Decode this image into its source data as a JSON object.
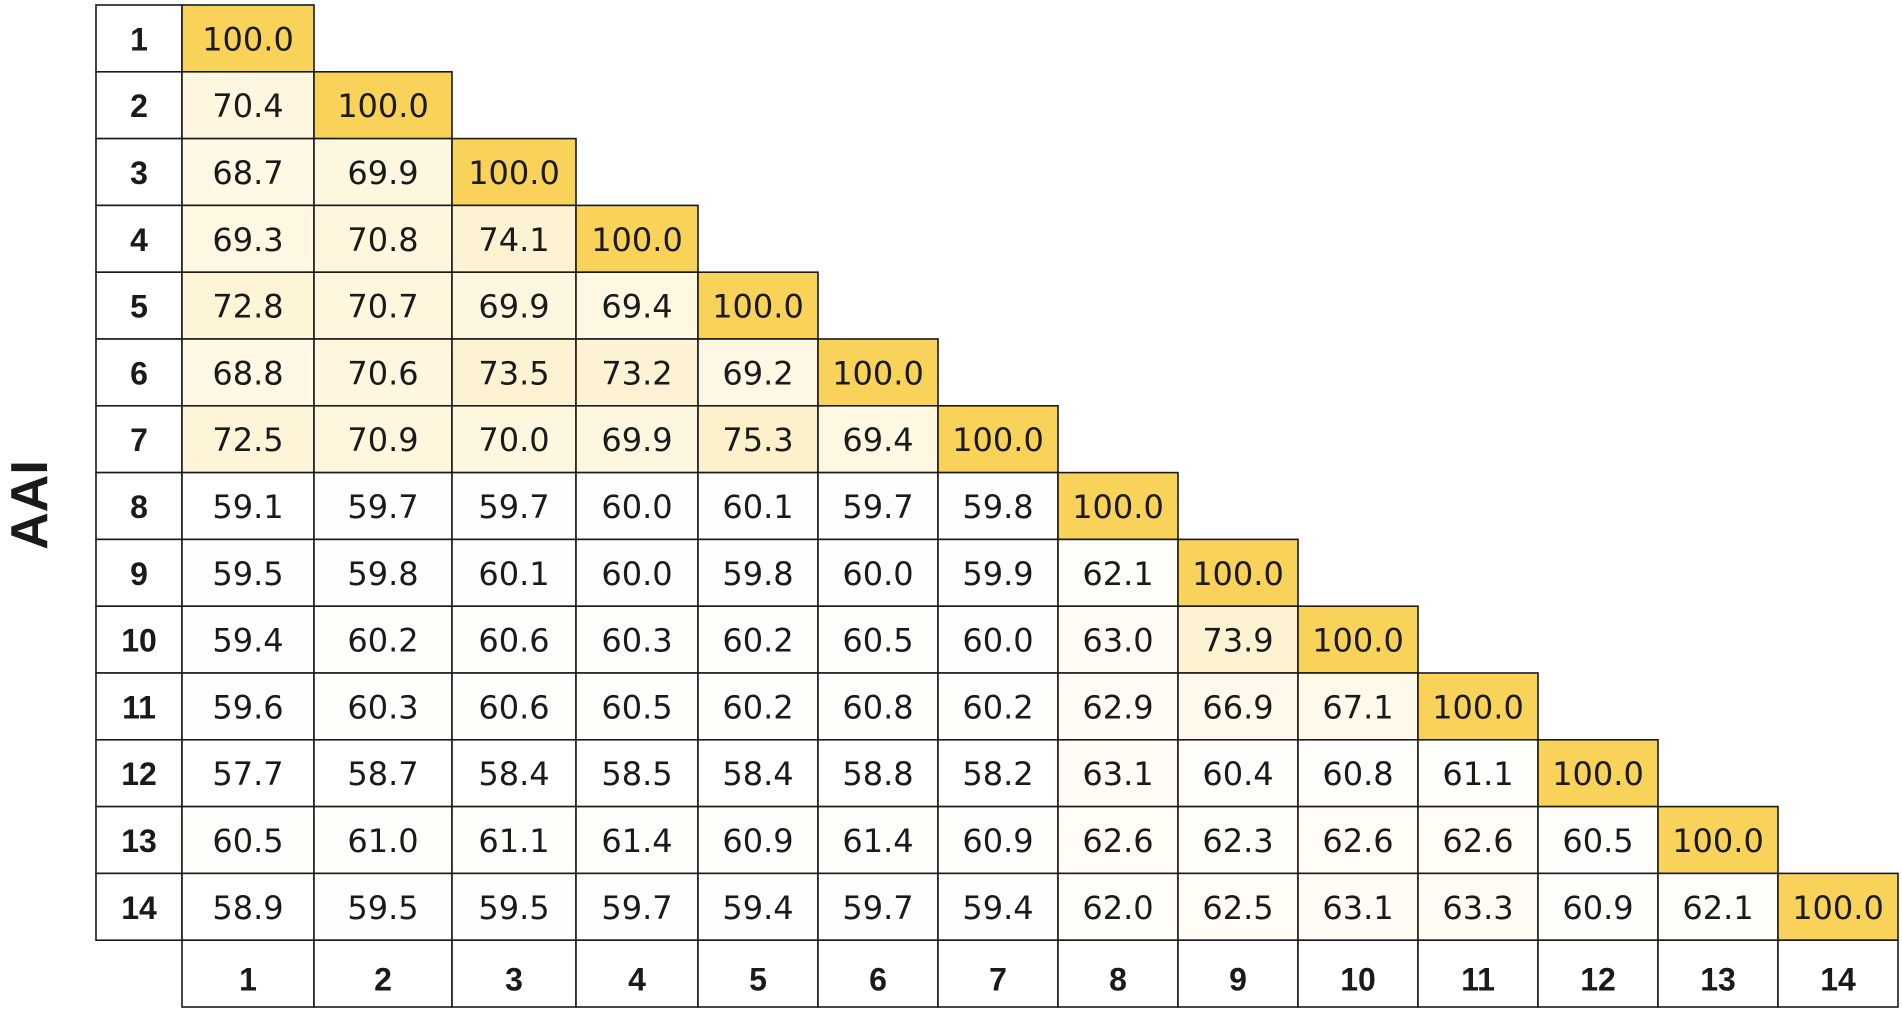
{
  "chart_data": {
    "type": "heatmap",
    "ylabel": "AAI",
    "row_labels": [
      "1",
      "2",
      "3",
      "4",
      "5",
      "6",
      "7",
      "8",
      "9",
      "10",
      "11",
      "12",
      "13",
      "14"
    ],
    "col_labels": [
      "1",
      "2",
      "3",
      "4",
      "5",
      "6",
      "7",
      "8",
      "9",
      "10",
      "11",
      "12",
      "13",
      "14"
    ],
    "values": [
      [
        "100.0"
      ],
      [
        "70.4",
        "100.0"
      ],
      [
        "68.7",
        "69.9",
        "100.0"
      ],
      [
        "69.3",
        "70.8",
        "74.1",
        "100.0"
      ],
      [
        "72.8",
        "70.7",
        "69.9",
        "69.4",
        "100.0"
      ],
      [
        "68.8",
        "70.6",
        "73.5",
        "73.2",
        "69.2",
        "100.0"
      ],
      [
        "72.5",
        "70.9",
        "70.0",
        "69.9",
        "75.3",
        "69.4",
        "100.0"
      ],
      [
        "59.1",
        "59.7",
        "59.7",
        "60.0",
        "60.1",
        "59.7",
        "59.8",
        "100.0"
      ],
      [
        "59.5",
        "59.8",
        "60.1",
        "60.0",
        "59.8",
        "60.0",
        "59.9",
        "62.1",
        "100.0"
      ],
      [
        "59.4",
        "60.2",
        "60.6",
        "60.3",
        "60.2",
        "60.5",
        "60.0",
        "63.0",
        "73.9",
        "100.0"
      ],
      [
        "59.6",
        "60.3",
        "60.6",
        "60.5",
        "60.2",
        "60.8",
        "60.2",
        "62.9",
        "66.9",
        "67.1",
        "100.0"
      ],
      [
        "57.7",
        "58.7",
        "58.4",
        "58.5",
        "58.4",
        "58.8",
        "58.2",
        "63.1",
        "60.4",
        "60.8",
        "61.1",
        "100.0"
      ],
      [
        "60.5",
        "61.0",
        "61.1",
        "61.4",
        "60.9",
        "61.4",
        "60.9",
        "62.6",
        "62.3",
        "62.6",
        "62.6",
        "60.5",
        "100.0"
      ],
      [
        "58.9",
        "59.5",
        "59.5",
        "59.7",
        "59.4",
        "59.7",
        "59.4",
        "62.0",
        "62.5",
        "63.1",
        "63.3",
        "60.9",
        "62.1",
        "100.0"
      ]
    ],
    "color_scale": {
      "low": "#ffffff",
      "high": "#f9d25a",
      "range": [
        57.7,
        100.0
      ]
    }
  }
}
